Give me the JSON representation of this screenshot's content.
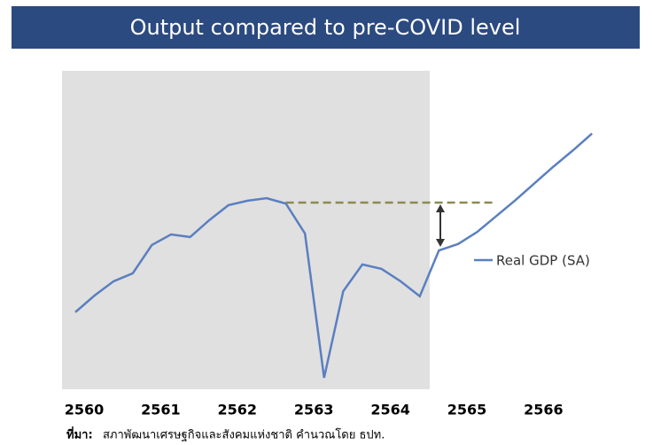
{
  "chart_data": {
    "type": "line",
    "title": "Output compared to pre-COVID level",
    "categories": [
      "2560",
      null,
      null,
      null,
      "2561",
      null,
      null,
      null,
      "2562",
      null,
      null,
      null,
      "2563",
      null,
      null,
      null,
      "2564",
      null,
      null,
      null,
      "2565",
      null,
      null,
      null,
      "2566",
      null,
      null,
      null
    ],
    "series": [
      {
        "name": "Real GDP (SA)",
        "color": "#5b7fc0",
        "values": [
          24.2,
          29.4,
          33.9,
          36.4,
          45.3,
          48.6,
          47.8,
          53.1,
          57.8,
          59.2,
          60.0,
          58.3,
          48.9,
          3.6,
          30.8,
          39.2,
          37.8,
          33.9,
          29.2,
          43.6,
          45.6,
          49.4,
          54.4,
          59.4,
          64.7,
          70.0,
          75.0,
          80.3
        ]
      }
    ],
    "pre_covid_level": 58.6,
    "ylim": [
      0,
      100
    ],
    "source_label": "ที่มา:",
    "source": "สภาพัฒนาเศรษฐกิจและสังคมแห่งชาติ คำนวณโดย ธปท."
  }
}
